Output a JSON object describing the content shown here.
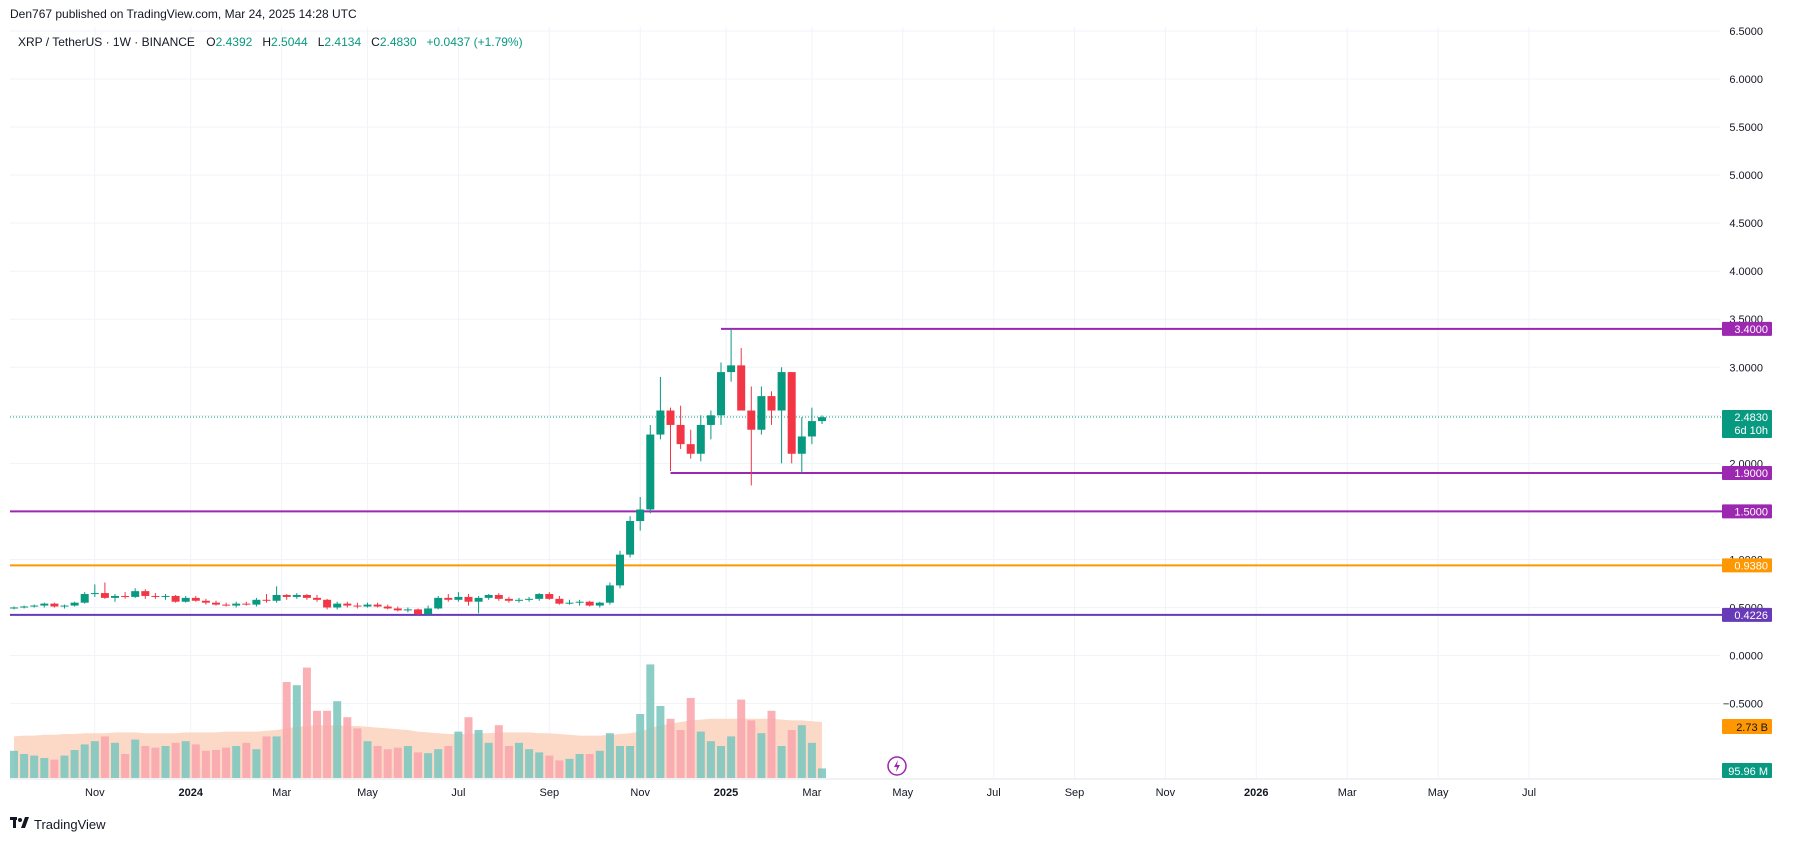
{
  "header": {
    "published": "Den767 published on TradingView.com, Mar 24, 2025 14:28 UTC"
  },
  "legend": {
    "symbol": "XRP / TetherUS · 1W · BINANCE",
    "open_label": "O",
    "open": "2.4392",
    "high_label": "H",
    "high": "2.5044",
    "low_label": "L",
    "low": "2.4134",
    "close_label": "C",
    "close": "2.4830",
    "change": "+0.0437 (+1.79%)"
  },
  "footer": {
    "brand": "TradingView",
    "logo": "tradingview-logo"
  },
  "colors": {
    "up": "#089981",
    "down": "#f23645",
    "level_purple": "#9c27b0",
    "level_orange": "#ff9800",
    "level_violet": "#673ab7",
    "vol_up": "#7fc8c0",
    "vol_down": "#f9a7ad",
    "vol_ma_area": "#fbd2bd"
  },
  "chart_data": {
    "type": "candlestick",
    "title": "",
    "timeframe": "1W",
    "ylim": [
      -0.9,
      6.5
    ],
    "y_ticks": [
      "6.5000",
      "6.0000",
      "5.5000",
      "5.0000",
      "4.5000",
      "4.0000",
      "3.5000",
      "3.0000",
      "2.5000",
      "2.0000",
      "1.5000",
      "1.0000",
      "0.5000",
      "0.0000",
      "−0.5000"
    ],
    "y_tick_values": [
      6.5,
      6.0,
      5.5,
      5.0,
      4.5,
      4.0,
      3.5,
      3.0,
      2.5,
      2.0,
      1.5,
      1.0,
      0.5,
      0.0,
      -0.5
    ],
    "x_ticks": [
      {
        "label": "Nov",
        "bold": false
      },
      {
        "label": "2024",
        "bold": true
      },
      {
        "label": "Mar",
        "bold": false
      },
      {
        "label": "May",
        "bold": false
      },
      {
        "label": "Jul",
        "bold": false
      },
      {
        "label": "Sep",
        "bold": false
      },
      {
        "label": "Nov",
        "bold": false
      },
      {
        "label": "2025",
        "bold": true
      },
      {
        "label": "Mar",
        "bold": false
      },
      {
        "label": "May",
        "bold": false
      },
      {
        "label": "Jul",
        "bold": false
      },
      {
        "label": "Sep",
        "bold": false
      },
      {
        "label": "Nov",
        "bold": false
      },
      {
        "label": "2026",
        "bold": true
      },
      {
        "label": "Mar",
        "bold": false
      },
      {
        "label": "May",
        "bold": false
      },
      {
        "label": "Jul",
        "bold": false
      }
    ],
    "x_tick_weeks": [
      8,
      17.5,
      26.5,
      35,
      44,
      53,
      62,
      70.5,
      79,
      88,
      97,
      105,
      114,
      123,
      132,
      141,
      150
    ],
    "candles": [
      {
        "o": 0.49,
        "h": 0.51,
        "l": 0.48,
        "c": 0.5
      },
      {
        "o": 0.5,
        "h": 0.52,
        "l": 0.49,
        "c": 0.51
      },
      {
        "o": 0.51,
        "h": 0.53,
        "l": 0.5,
        "c": 0.52
      },
      {
        "o": 0.52,
        "h": 0.55,
        "l": 0.5,
        "c": 0.54
      },
      {
        "o": 0.54,
        "h": 0.55,
        "l": 0.5,
        "c": 0.51
      },
      {
        "o": 0.51,
        "h": 0.53,
        "l": 0.49,
        "c": 0.52
      },
      {
        "o": 0.52,
        "h": 0.56,
        "l": 0.51,
        "c": 0.55
      },
      {
        "o": 0.55,
        "h": 0.66,
        "l": 0.54,
        "c": 0.64
      },
      {
        "o": 0.64,
        "h": 0.74,
        "l": 0.61,
        "c": 0.65
      },
      {
        "o": 0.65,
        "h": 0.76,
        "l": 0.59,
        "c": 0.6
      },
      {
        "o": 0.6,
        "h": 0.64,
        "l": 0.56,
        "c": 0.62
      },
      {
        "o": 0.62,
        "h": 0.66,
        "l": 0.59,
        "c": 0.61
      },
      {
        "o": 0.61,
        "h": 0.7,
        "l": 0.6,
        "c": 0.67
      },
      {
        "o": 0.67,
        "h": 0.69,
        "l": 0.59,
        "c": 0.62
      },
      {
        "o": 0.62,
        "h": 0.65,
        "l": 0.59,
        "c": 0.61
      },
      {
        "o": 0.61,
        "h": 0.64,
        "l": 0.58,
        "c": 0.62
      },
      {
        "o": 0.62,
        "h": 0.63,
        "l": 0.55,
        "c": 0.56
      },
      {
        "o": 0.56,
        "h": 0.62,
        "l": 0.55,
        "c": 0.6
      },
      {
        "o": 0.6,
        "h": 0.62,
        "l": 0.56,
        "c": 0.57
      },
      {
        "o": 0.57,
        "h": 0.59,
        "l": 0.53,
        "c": 0.55
      },
      {
        "o": 0.55,
        "h": 0.57,
        "l": 0.52,
        "c": 0.53
      },
      {
        "o": 0.53,
        "h": 0.55,
        "l": 0.51,
        "c": 0.52
      },
      {
        "o": 0.52,
        "h": 0.56,
        "l": 0.5,
        "c": 0.54
      },
      {
        "o": 0.54,
        "h": 0.56,
        "l": 0.52,
        "c": 0.53
      },
      {
        "o": 0.53,
        "h": 0.6,
        "l": 0.51,
        "c": 0.58
      },
      {
        "o": 0.58,
        "h": 0.64,
        "l": 0.55,
        "c": 0.57
      },
      {
        "o": 0.57,
        "h": 0.72,
        "l": 0.55,
        "c": 0.63
      },
      {
        "o": 0.63,
        "h": 0.64,
        "l": 0.58,
        "c": 0.61
      },
      {
        "o": 0.61,
        "h": 0.65,
        "l": 0.59,
        "c": 0.63
      },
      {
        "o": 0.63,
        "h": 0.64,
        "l": 0.58,
        "c": 0.6
      },
      {
        "o": 0.6,
        "h": 0.63,
        "l": 0.56,
        "c": 0.58
      },
      {
        "o": 0.58,
        "h": 0.59,
        "l": 0.48,
        "c": 0.5
      },
      {
        "o": 0.5,
        "h": 0.56,
        "l": 0.48,
        "c": 0.54
      },
      {
        "o": 0.54,
        "h": 0.56,
        "l": 0.5,
        "c": 0.52
      },
      {
        "o": 0.52,
        "h": 0.55,
        "l": 0.49,
        "c": 0.51
      },
      {
        "o": 0.51,
        "h": 0.55,
        "l": 0.5,
        "c": 0.53
      },
      {
        "o": 0.53,
        "h": 0.55,
        "l": 0.5,
        "c": 0.51
      },
      {
        "o": 0.51,
        "h": 0.53,
        "l": 0.48,
        "c": 0.49
      },
      {
        "o": 0.49,
        "h": 0.51,
        "l": 0.46,
        "c": 0.47
      },
      {
        "o": 0.47,
        "h": 0.5,
        "l": 0.45,
        "c": 0.48
      },
      {
        "o": 0.48,
        "h": 0.49,
        "l": 0.42,
        "c": 0.43
      },
      {
        "o": 0.43,
        "h": 0.52,
        "l": 0.41,
        "c": 0.49
      },
      {
        "o": 0.49,
        "h": 0.62,
        "l": 0.48,
        "c": 0.6
      },
      {
        "o": 0.6,
        "h": 0.64,
        "l": 0.56,
        "c": 0.58
      },
      {
        "o": 0.58,
        "h": 0.66,
        "l": 0.56,
        "c": 0.61
      },
      {
        "o": 0.61,
        "h": 0.64,
        "l": 0.52,
        "c": 0.56
      },
      {
        "o": 0.56,
        "h": 0.62,
        "l": 0.44,
        "c": 0.6
      },
      {
        "o": 0.6,
        "h": 0.64,
        "l": 0.58,
        "c": 0.63
      },
      {
        "o": 0.63,
        "h": 0.65,
        "l": 0.57,
        "c": 0.59
      },
      {
        "o": 0.59,
        "h": 0.61,
        "l": 0.55,
        "c": 0.57
      },
      {
        "o": 0.57,
        "h": 0.6,
        "l": 0.55,
        "c": 0.58
      },
      {
        "o": 0.58,
        "h": 0.61,
        "l": 0.56,
        "c": 0.59
      },
      {
        "o": 0.59,
        "h": 0.65,
        "l": 0.57,
        "c": 0.64
      },
      {
        "o": 0.64,
        "h": 0.66,
        "l": 0.58,
        "c": 0.59
      },
      {
        "o": 0.59,
        "h": 0.62,
        "l": 0.53,
        "c": 0.54
      },
      {
        "o": 0.54,
        "h": 0.58,
        "l": 0.53,
        "c": 0.55
      },
      {
        "o": 0.55,
        "h": 0.58,
        "l": 0.52,
        "c": 0.56
      },
      {
        "o": 0.56,
        "h": 0.57,
        "l": 0.51,
        "c": 0.52
      },
      {
        "o": 0.52,
        "h": 0.56,
        "l": 0.5,
        "c": 0.55
      },
      {
        "o": 0.55,
        "h": 0.76,
        "l": 0.53,
        "c": 0.73
      },
      {
        "o": 0.73,
        "h": 1.09,
        "l": 0.7,
        "c": 1.05
      },
      {
        "o": 1.05,
        "h": 1.45,
        "l": 1.02,
        "c": 1.4
      },
      {
        "o": 1.4,
        "h": 1.65,
        "l": 1.3,
        "c": 1.52
      },
      {
        "o": 1.52,
        "h": 2.4,
        "l": 1.48,
        "c": 2.3
      },
      {
        "o": 2.3,
        "h": 2.9,
        "l": 2.25,
        "c": 2.55
      },
      {
        "o": 2.55,
        "h": 2.58,
        "l": 1.92,
        "c": 2.4
      },
      {
        "o": 2.4,
        "h": 2.6,
        "l": 2.15,
        "c": 2.2
      },
      {
        "o": 2.2,
        "h": 2.35,
        "l": 2.05,
        "c": 2.1
      },
      {
        "o": 2.1,
        "h": 2.5,
        "l": 2.02,
        "c": 2.4
      },
      {
        "o": 2.4,
        "h": 2.55,
        "l": 2.25,
        "c": 2.5
      },
      {
        "o": 2.5,
        "h": 3.05,
        "l": 2.4,
        "c": 2.95
      },
      {
        "o": 2.95,
        "h": 3.4,
        "l": 2.85,
        "c": 3.02
      },
      {
        "o": 3.02,
        "h": 3.2,
        "l": 2.6,
        "c": 2.55
      },
      {
        "o": 2.55,
        "h": 2.8,
        "l": 1.77,
        "c": 2.35
      },
      {
        "o": 2.35,
        "h": 2.8,
        "l": 2.3,
        "c": 2.7
      },
      {
        "o": 2.7,
        "h": 2.75,
        "l": 2.4,
        "c": 2.55
      },
      {
        "o": 2.55,
        "h": 3.0,
        "l": 2.0,
        "c": 2.95
      },
      {
        "o": 2.95,
        "h": 2.95,
        "l": 2.0,
        "c": 2.1
      },
      {
        "o": 2.1,
        "h": 2.48,
        "l": 1.9,
        "c": 2.28
      },
      {
        "o": 2.28,
        "h": 2.58,
        "l": 2.2,
        "c": 2.44
      },
      {
        "o": 2.44,
        "h": 2.5,
        "l": 2.41,
        "c": 2.48
      }
    ],
    "volume": [
      34,
      30,
      28,
      25,
      23,
      28,
      35,
      42,
      46,
      52,
      44,
      30,
      48,
      40,
      38,
      40,
      44,
      46,
      42,
      34,
      35,
      38,
      40,
      44,
      36,
      52,
      52,
      120,
      116,
      138,
      84,
      84,
      96,
      76,
      62,
      46,
      40,
      36,
      38,
      40,
      32,
      31,
      36,
      40,
      58,
      76,
      60,
      44,
      66,
      40,
      44,
      36,
      32,
      28,
      22,
      24,
      30,
      30,
      34,
      56,
      40,
      40,
      80,
      142,
      90,
      74,
      60,
      100,
      58,
      46,
      40,
      52,
      98,
      72,
      56,
      84,
      40,
      60,
      66,
      44,
      12
    ],
    "volume_ma": [
      52,
      53,
      53,
      54,
      54,
      55,
      55,
      56,
      56,
      56,
      57,
      57,
      57,
      56,
      56,
      56,
      56,
      57,
      57,
      57,
      57,
      58,
      58,
      58,
      58,
      59,
      60,
      62,
      64,
      65,
      66,
      66,
      66,
      65,
      65,
      64,
      63,
      62,
      61,
      60,
      58,
      57,
      56,
      55,
      55,
      55,
      56,
      56,
      57,
      57,
      57,
      57,
      56,
      56,
      55,
      54,
      53,
      53,
      53,
      54,
      55,
      56,
      58,
      62,
      66,
      68,
      70,
      72,
      73,
      74,
      74,
      74,
      74,
      74,
      74,
      74,
      73,
      72,
      72,
      71,
      70
    ],
    "levels": [
      {
        "value": 3.4,
        "label": "3.4000",
        "color": "#9c27b0",
        "start_week": 70
      },
      {
        "value": 1.9,
        "label": "1.9000",
        "color": "#9c27b0",
        "start_week": 65
      },
      {
        "value": 1.5,
        "label": "1.5000",
        "color": "#9c27b0",
        "start_week": 0
      },
      {
        "value": 0.938,
        "label": "0.9380",
        "color": "#ff9800",
        "start_week": 0
      },
      {
        "value": 0.4226,
        "label": "0.4226",
        "color": "#673ab7",
        "start_week": 0
      }
    ],
    "current_price": {
      "value": 2.483,
      "label": "2.4830",
      "countdown": "6d 10h",
      "color": "#089981"
    },
    "volume_ma_label": {
      "text": "2.73 B",
      "color": "#ff9800"
    },
    "volume_label": {
      "text": "95.96 M",
      "color": "#089981"
    }
  }
}
